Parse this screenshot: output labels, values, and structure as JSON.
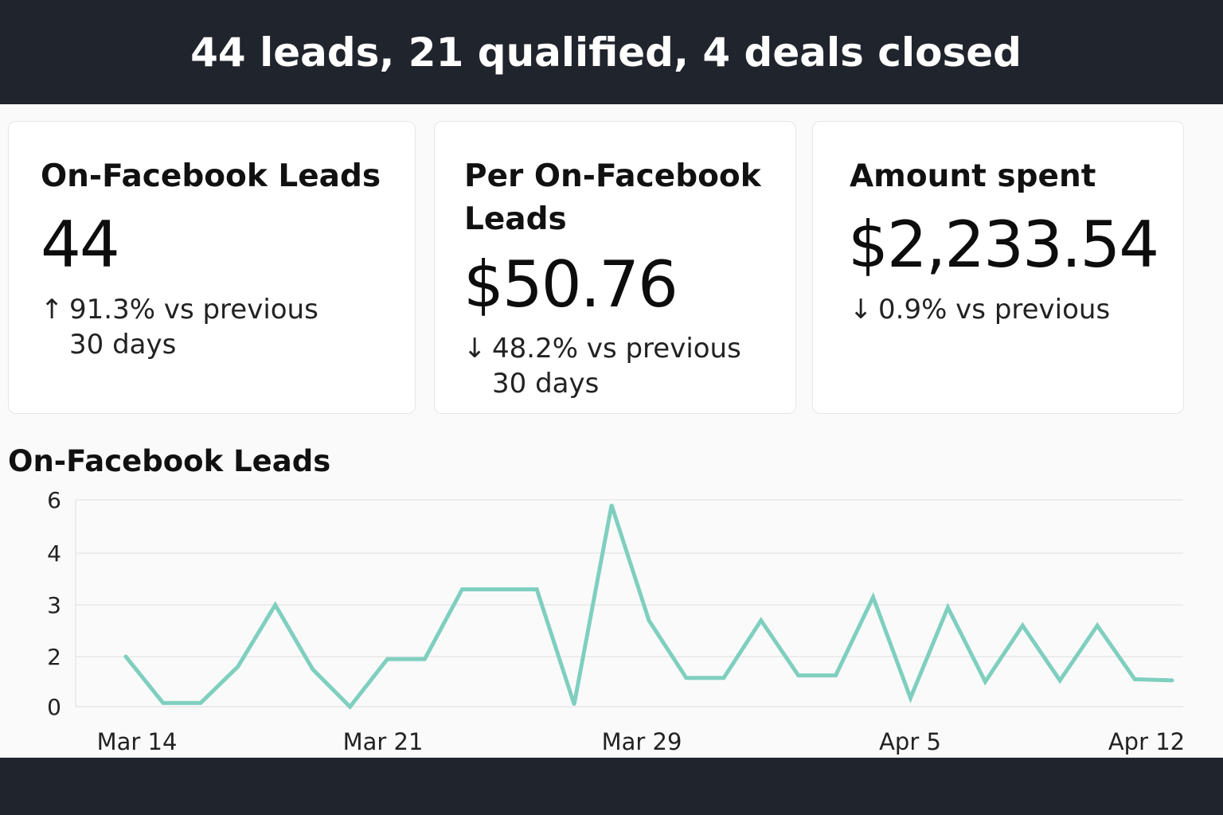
{
  "header": {
    "headline": "44 leads, 21 qualified, 4 deals closed"
  },
  "cards": [
    {
      "title": "On-Facebook Leads",
      "value": "44",
      "change_arrow": "↑",
      "change_text": "91.3% vs previous 30 days"
    },
    {
      "title": "Per On-Facebook Leads",
      "value": "$50.76",
      "change_arrow": "↓",
      "change_text": "48.2% vs previous 30 days"
    },
    {
      "title": "Amount spent",
      "value": "$2,233.54",
      "change_arrow": "↓",
      "change_text": "0.9% vs previous"
    }
  ],
  "colors": {
    "banner": "#20242c",
    "line": "#7fcfbf",
    "grid": "#e8e8e8"
  },
  "chart_data": {
    "type": "line",
    "title": "On-Facebook Leads",
    "ytick_labels": [
      "0",
      "2",
      "3",
      "4",
      "6"
    ],
    "ytick_values": [
      0,
      2,
      3,
      4,
      6
    ],
    "xtick_labels": [
      "Mar 14",
      "Mar 21",
      "Mar 29",
      "Apr 5",
      "Apr 12"
    ],
    "ylim": [
      0,
      6
    ],
    "grid": true,
    "series": [
      {
        "values": [
          2,
          0.15,
          0.15,
          1.6,
          3,
          1.5,
          0,
          1.9,
          1.9,
          3.3,
          3.3,
          3.3,
          0.1,
          5.8,
          2.7,
          1.15,
          1.15,
          2.7,
          1.25,
          1.25,
          3.15,
          0.35,
          2.95,
          1.0,
          2.6,
          1.05,
          2.6,
          1.1,
          1.05
        ]
      }
    ]
  }
}
